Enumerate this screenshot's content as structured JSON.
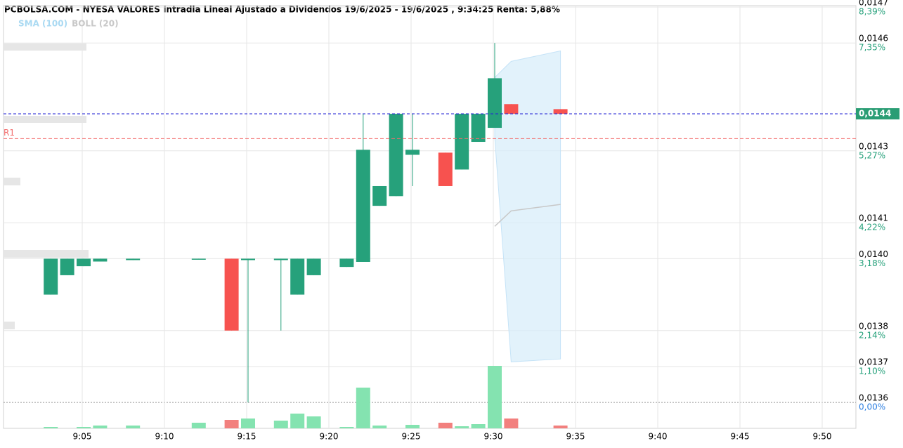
{
  "chart_data": {
    "type": "candlestick",
    "title": "PCBOLSA.COM - NYESA VALORES Intradia Lineal Ajustado a Dividendos 19/6/2025 - 19/6/2025 , 9:34:25 Renta: 5,88%",
    "legend": [
      {
        "name": "SMA (100)",
        "color": "#a9d9f2"
      },
      {
        "name": "BOLL (20)",
        "color": "#c8c8c8"
      }
    ],
    "x": [
      "9:03",
      "9:04",
      "9:05",
      "9:06",
      "9:08",
      "9:12",
      "9:14",
      "9:15",
      "9:17",
      "9:18",
      "9:19",
      "9:21",
      "9:22",
      "9:23",
      "9:24",
      "9:25",
      "9:27",
      "9:28",
      "9:29",
      "9:30",
      "9:31",
      "9:34"
    ],
    "open": [
      0.0139,
      0.013954,
      0.013979,
      0.013992,
      0.013996,
      0.013998,
      0.014,
      0.013996,
      0.013996,
      0.0139,
      0.013954,
      0.013977,
      0.013991,
      0.014147,
      0.014174,
      0.014289,
      0.014295,
      0.014248,
      0.014325,
      0.014364,
      0.01443,
      0.014416
    ],
    "high": [
      0.014,
      0.014,
      0.014,
      0.014,
      0.014,
      0.014,
      0.014,
      0.014,
      0.014,
      0.014,
      0.014,
      0.014,
      0.014403,
      0.014202,
      0.014403,
      0.014403,
      0.014295,
      0.014403,
      0.014403,
      0.0146,
      0.01443,
      0.014416
    ],
    "low": [
      0.0139,
      0.013954,
      0.013979,
      0.013992,
      0.013996,
      0.013998,
      0.0138,
      0.0136,
      0.0138,
      0.0139,
      0.013954,
      0.013977,
      0.013991,
      0.014147,
      0.014174,
      0.014202,
      0.014202,
      0.014248,
      0.014325,
      0.014364,
      0.014403,
      0.014403
    ],
    "close": [
      0.014,
      0.014,
      0.014,
      0.014,
      0.014,
      0.014,
      0.0138,
      0.014,
      0.014,
      0.014,
      0.014,
      0.014,
      0.014303,
      0.014202,
      0.014403,
      0.014303,
      0.014202,
      0.014403,
      0.014403,
      0.014502,
      0.014403,
      0.014403
    ],
    "volume": [
      2,
      0,
      2,
      4,
      4,
      8,
      12,
      14,
      11,
      21,
      17,
      2,
      58,
      4,
      0,
      5,
      8,
      3,
      6,
      89,
      14,
      4
    ],
    "vlim": [
      0,
      100
    ],
    "bollinger": {
      "x": [
        "9:30",
        "9:31",
        "9:34"
      ],
      "upper": [
        0.014504,
        0.014549,
        0.014578
      ],
      "middle": [
        0.01409,
        0.014133,
        0.014151
      ],
      "lower": [
        0.014338,
        0.013713,
        0.013721
      ]
    },
    "xlim": [
      "9:00",
      "9:52"
    ],
    "xticks": [
      "9:05",
      "9:10",
      "9:15",
      "9:20",
      "9:25",
      "9:30",
      "9:35",
      "9:40",
      "9:45",
      "9:50"
    ],
    "ylim": [
      0.013528,
      0.014704
    ],
    "yticks": [
      {
        "value": 0.0136,
        "label": "0,0136"
      },
      {
        "value": 0.0137,
        "label": "0,0137"
      },
      {
        "value": 0.0138,
        "label": "0,0138"
      },
      {
        "value": 0.014,
        "label": "0,0140"
      },
      {
        "value": 0.0141,
        "label": "0,0141"
      },
      {
        "value": 0.0143,
        "label": "0,0143"
      },
      {
        "value": 0.0146,
        "label": "0,0146"
      },
      {
        "value": 0.0147,
        "label": "0,0147"
      }
    ],
    "y_percent_labels": [
      "0,00%",
      "1,10%",
      "2,14%",
      "3,18%",
      "4,22%",
      "5,27%",
      "7,35%",
      "8,39%"
    ],
    "last_price": {
      "value": 0.014403,
      "label": "0,0144",
      "color": "#2a9d74"
    },
    "reference_lines": [
      {
        "name": "R1",
        "value": 0.014334,
        "color": "#f26d6d"
      }
    ],
    "up_color": "#26a17b",
    "down_color": "#f7524f",
    "volume_up_color": "#84e3b0",
    "volume_down_color": "#f2807e",
    "grid": true
  }
}
